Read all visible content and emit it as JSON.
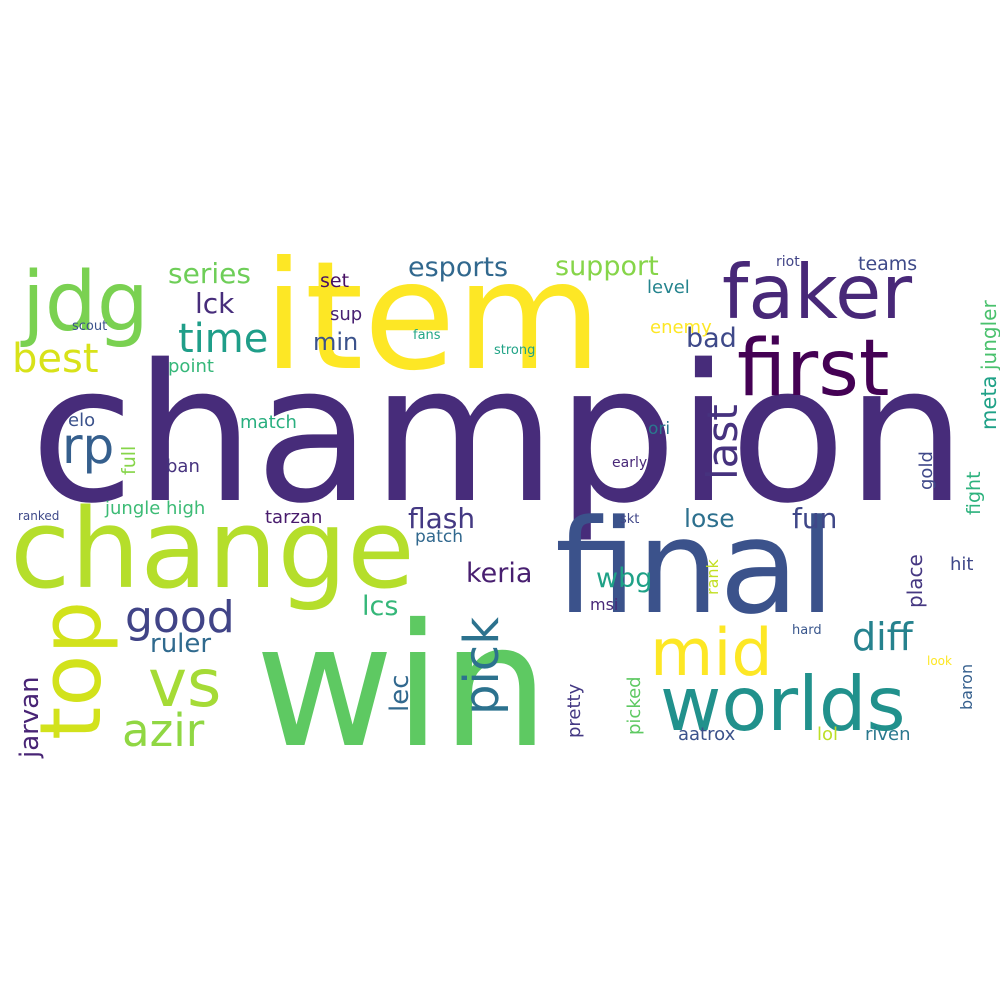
{
  "words": [
    {
      "text": "champion",
      "color": "#472c7a"
    },
    {
      "text": "item",
      "color": "#fde725"
    },
    {
      "text": "win",
      "color": "#5ec962"
    },
    {
      "text": "final",
      "color": "#3b528b"
    },
    {
      "text": "change",
      "color": "#b5de2b"
    },
    {
      "text": "faker",
      "color": "#482878"
    },
    {
      "text": "first",
      "color": "#440154"
    },
    {
      "text": "jdg",
      "color": "#7ad151"
    },
    {
      "text": "worlds",
      "color": "#21918c"
    },
    {
      "text": "top",
      "color": "#d2e21b"
    },
    {
      "text": "vs",
      "color": "#a5db36"
    },
    {
      "text": "mid",
      "color": "#fde725"
    },
    {
      "text": "pick",
      "color": "#2c728e"
    },
    {
      "text": "good",
      "color": "#414487"
    },
    {
      "text": "azir",
      "color": "#90d743"
    },
    {
      "text": "best",
      "color": "#d8e219"
    },
    {
      "text": "time",
      "color": "#1f9e89"
    },
    {
      "text": "rp",
      "color": "#355f8d"
    },
    {
      "text": "last",
      "color": "#46327e"
    },
    {
      "text": "diff",
      "color": "#26828e"
    },
    {
      "text": "series",
      "color": "#6ece58"
    },
    {
      "text": "esports",
      "color": "#31688e"
    },
    {
      "text": "support",
      "color": "#86d549"
    },
    {
      "text": "lck",
      "color": "#472d7b"
    },
    {
      "text": "bad",
      "color": "#3e4989"
    },
    {
      "text": "flash",
      "color": "#443983"
    },
    {
      "text": "fun",
      "color": "#3f4788"
    },
    {
      "text": "lose",
      "color": "#2d708e"
    },
    {
      "text": "keria",
      "color": "#481f70"
    },
    {
      "text": "wbg",
      "color": "#1fa187"
    },
    {
      "text": "ruler",
      "color": "#306a8e"
    },
    {
      "text": "lcs",
      "color": "#35b779"
    },
    {
      "text": "lec",
      "color": "#31688e"
    },
    {
      "text": "jarvan",
      "color": "#482475"
    },
    {
      "text": "min",
      "color": "#3b528b"
    },
    {
      "text": "set",
      "color": "#471063"
    },
    {
      "text": "sup",
      "color": "#482173"
    },
    {
      "text": "level",
      "color": "#25848e"
    },
    {
      "text": "enemy",
      "color": "#fde725"
    },
    {
      "text": "teams",
      "color": "#3e4a89"
    },
    {
      "text": "riot",
      "color": "#414487"
    },
    {
      "text": "jungler",
      "color": "#4ac16d"
    },
    {
      "text": "meta",
      "color": "#1fa187"
    },
    {
      "text": "fight",
      "color": "#2db27d"
    },
    {
      "text": "gold",
      "color": "#3f4889"
    },
    {
      "text": "strong",
      "color": "#20a386"
    },
    {
      "text": "fans",
      "color": "#22a785"
    },
    {
      "text": "scout",
      "color": "#3b528b"
    },
    {
      "text": "point",
      "color": "#35b779"
    },
    {
      "text": "match",
      "color": "#29af7f"
    },
    {
      "text": "elo",
      "color": "#3b528b"
    },
    {
      "text": "full",
      "color": "#86d549"
    },
    {
      "text": "ban",
      "color": "#46327e"
    },
    {
      "text": "ori",
      "color": "#2a788e"
    },
    {
      "text": "early",
      "color": "#482878"
    },
    {
      "text": "jungle high",
      "color": "#3cbb75"
    },
    {
      "text": "tarzan",
      "color": "#481b6d"
    },
    {
      "text": "patch",
      "color": "#31688e"
    },
    {
      "text": "ranked",
      "color": "#3e4989"
    },
    {
      "text": "skt",
      "color": "#404688"
    },
    {
      "text": "rank",
      "color": "#c2df23"
    },
    {
      "text": "place",
      "color": "#453781"
    },
    {
      "text": "hit",
      "color": "#3f4889"
    },
    {
      "text": "msi",
      "color": "#482878"
    },
    {
      "text": "picked",
      "color": "#5ec962"
    },
    {
      "text": "pretty",
      "color": "#443983"
    },
    {
      "text": "hard",
      "color": "#39568c"
    },
    {
      "text": "look",
      "color": "#fde725"
    },
    {
      "text": "baron",
      "color": "#355f8d"
    },
    {
      "text": "aatrox",
      "color": "#3b528b"
    },
    {
      "text": "lol",
      "color": "#bddf26"
    },
    {
      "text": "riven",
      "color": "#2a788e"
    }
  ]
}
